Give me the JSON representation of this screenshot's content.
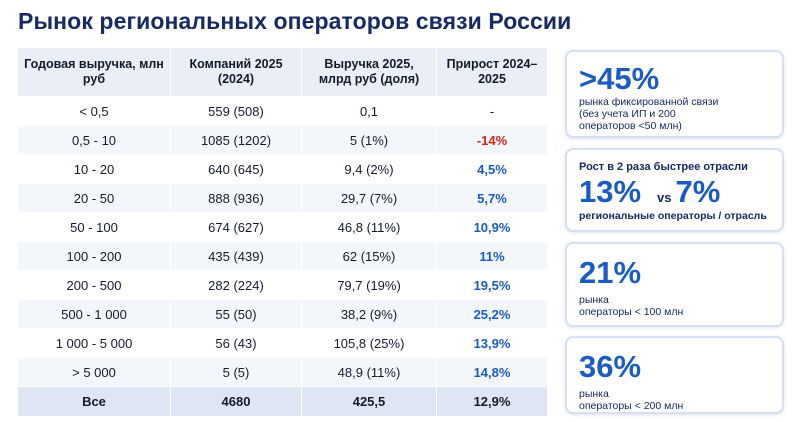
{
  "title": "Рынок региональных операторов связи России",
  "table": {
    "headers": [
      "Годовая выручка, млн руб",
      "Компаний 2025 (2024)",
      "Выручка 2025, млрд руб (доля)",
      "Прирост 2024–2025"
    ],
    "rows": [
      [
        "< 0,5",
        "559 (508)",
        "0,1",
        "-"
      ],
      [
        "0,5 - 10",
        "1085 (1202)",
        "5 (1%)",
        "-14%"
      ],
      [
        "10 - 20",
        "640 (645)",
        "9,4 (2%)",
        "4,5%"
      ],
      [
        "20 - 50",
        "888 (936)",
        "29,7 (7%)",
        "5,7%"
      ],
      [
        "50 - 100",
        "674 (627)",
        "46,8 (11%)",
        "10,9%"
      ],
      [
        "100 - 200",
        "435 (439)",
        "62 (15%)",
        "11%"
      ],
      [
        "200 - 500",
        "282 (224)",
        "79,7 (19%)",
        "19,5%"
      ],
      [
        "500 - 1 000",
        "55 (50)",
        "38,2 (9%)",
        "25,2%"
      ],
      [
        "1 000 - 5 000",
        "56 (43)",
        "105,8 (25%)",
        "13,9%"
      ],
      [
        "> 5 000",
        "5 (5)",
        "48,9 (11%)",
        "14,8%"
      ]
    ],
    "total": [
      "Все",
      "4680",
      "425,5",
      "12,9%"
    ]
  },
  "cards": {
    "c1": {
      "big": ">45%",
      "l1": "рынка фиксированной связи",
      "l2": "(без учета ИП и 200",
      "l3": "операторов <50 млн)"
    },
    "c2": {
      "head": "Рост в 2 раза быстрее отрасли",
      "v1": "13%",
      "vs": "vs",
      "v2": "7%",
      "foot": "региональные операторы / отрасль"
    },
    "c3": {
      "big": "21%",
      "l1": "рынка",
      "l2": "операторы < 100 млн"
    },
    "c4": {
      "big": "36%",
      "l1": "рынка",
      "l2": "операторы < 200 млн"
    }
  },
  "colors": {
    "accent": "#1a5bc4",
    "negative": "#e0201c",
    "title": "#172a63",
    "header_bg": "#e9eef7"
  }
}
